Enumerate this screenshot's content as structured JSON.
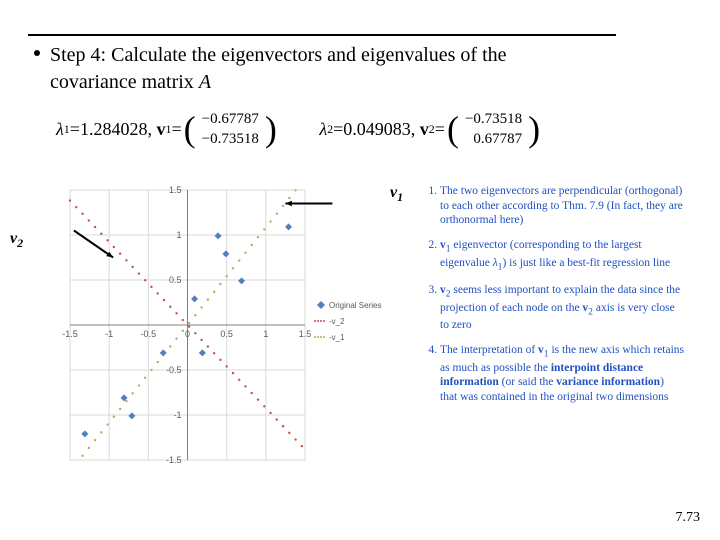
{
  "step_text": "Step 4: Calculate the eigenvectors and eigenvalues of the covariance matrix ",
  "step_matrix_symbol": "A",
  "eigen": {
    "lambda1": "1.284028",
    "lambda2": "0.049083",
    "v1_a": "−0.67787",
    "v1_b": "−0.73518",
    "v2_a": "−0.73518",
    "v2_b": "0.67787"
  },
  "labels": {
    "v1": "v",
    "v2": "v"
  },
  "chart": {
    "type": "scatter",
    "xlim": [
      -1.5,
      1.5
    ],
    "ylim": [
      -1.5,
      1.5
    ],
    "tick_step": 0.5,
    "tick_labels_x": [
      "-1.5",
      "-1",
      "-0.5",
      "0",
      "0.5",
      "1",
      "1.5"
    ],
    "tick_labels_y": [
      "-1.5",
      "-1",
      "-0.5",
      "",
      "0.5",
      "1",
      "1.5"
    ],
    "grid_color": "#d9d9d9",
    "background_color": "#ffffff",
    "series": {
      "original": {
        "label": "Original Series",
        "color": "#4f81bd",
        "marker": "diamond",
        "points": [
          [
            0.69,
            0.49
          ],
          [
            -1.31,
            -1.21
          ],
          [
            0.39,
            0.99
          ],
          [
            0.09,
            0.29
          ],
          [
            1.29,
            1.09
          ],
          [
            0.49,
            0.79
          ],
          [
            0.19,
            -0.31
          ],
          [
            -0.81,
            -0.81
          ],
          [
            -0.31,
            -0.31
          ],
          [
            -0.71,
            -1.01
          ]
        ]
      },
      "v2_line": {
        "label": "-v_2",
        "color": "#c0504d",
        "style": "dotted"
      },
      "v1_line": {
        "label": "-v_1",
        "color": "#9bbb59",
        "style": "dotted"
      }
    },
    "legend_items": [
      "Original Series",
      "-v_2",
      "-v_1"
    ]
  },
  "notes": [
    "The two eigenvectors are perpendicular (orthogonal) to each other according to Thm. 7.9 (In fact, they are orthonormal here)",
    "<b>v</b><sub>1</sub> eigenvector (corresponding to the largest eigenvalue <i>λ</i><sub>1</sub>) is just like a best-fit regression line",
    "<b>v</b><sub>2</sub> seems less important to explain the data since the projection of each node on the <b>v</b><sub>2</sub> axis is very close to zero",
    "The interpretation of <b>v</b><sub>1</sub> is the new axis which retains as much as possible the <b>interpoint distance information</b> (or said the <b>variance information</b>) that was contained in the original two dimensions"
  ],
  "page_number": "7.73",
  "arrows": {
    "color": "#000000"
  }
}
